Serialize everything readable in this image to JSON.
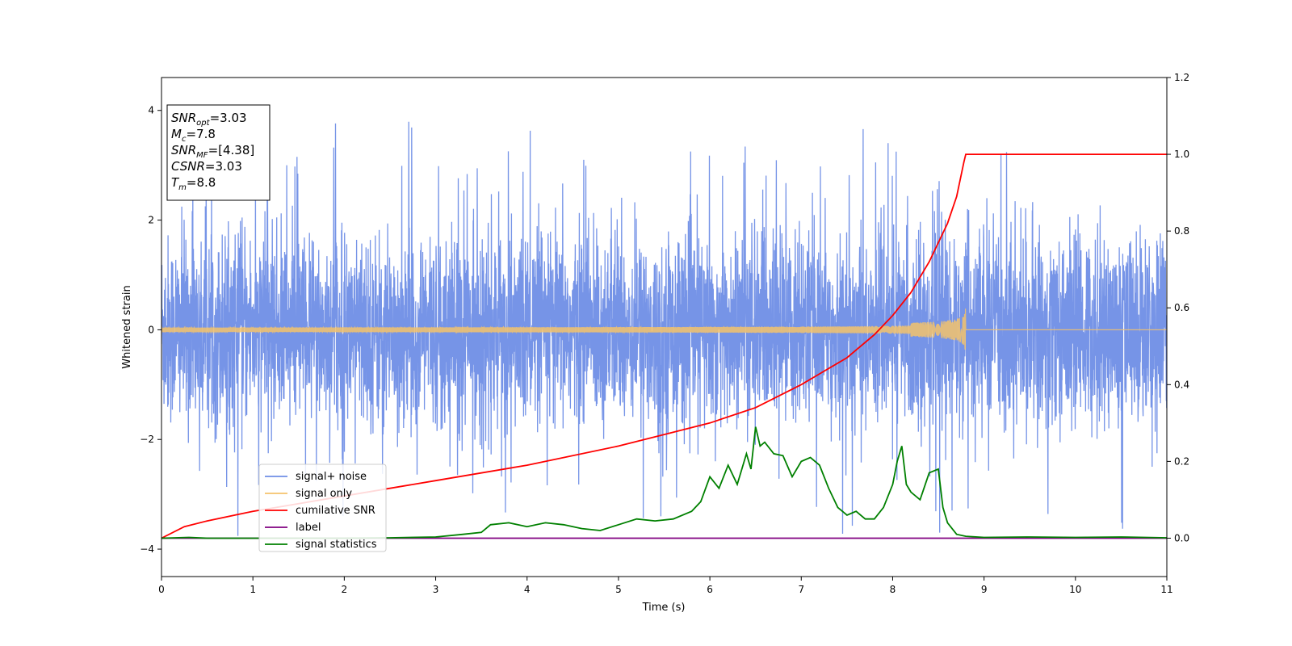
{
  "chart_data": {
    "type": "line",
    "xlabel": "Time (s)",
    "ylabel": "Whitened strain",
    "xlim": [
      0,
      11
    ],
    "ylim_left": [
      -4.5,
      4.6
    ],
    "ylim_right": [
      -0.1,
      1.2
    ],
    "x_ticks": [
      0,
      1,
      2,
      3,
      4,
      5,
      6,
      7,
      8,
      9,
      10,
      11
    ],
    "y_ticks_left": [
      -4,
      -2,
      0,
      2,
      4
    ],
    "y_ticks_right": [
      "0.0",
      "0.2",
      "0.4",
      "0.6",
      "0.8",
      "1.0",
      "1.2"
    ],
    "annotation_lines": [
      {
        "var": "SNR",
        "sub": "opt",
        "value": "=3.03"
      },
      {
        "var": "M",
        "sub": "c",
        "value": "=7.8"
      },
      {
        "var": "SNR",
        "sub": "MF",
        "value": "=[4.38]"
      },
      {
        "var": "CSNR",
        "sub": "",
        "value": "=3.03"
      },
      {
        "var": "T",
        "sub": "m",
        "value": "=8.8"
      }
    ],
    "legend_position": "lower-left",
    "series": [
      {
        "name": "signal+ noise",
        "axis": "left",
        "color": "#6f8ee6",
        "noise_std": 0.85,
        "spike_max": 4.2,
        "spike_min": -4.1
      },
      {
        "name": "signal only",
        "axis": "left",
        "color": "#f4c36b",
        "merger_time": 8.8,
        "peak_amplitude": 0.45
      },
      {
        "name": "cumilative SNR",
        "axis": "right",
        "color": "#ff0000",
        "points": [
          [
            0.0,
            0.0
          ],
          [
            0.25,
            0.03
          ],
          [
            0.5,
            0.045
          ],
          [
            1.0,
            0.07
          ],
          [
            2.0,
            0.11
          ],
          [
            3.0,
            0.15
          ],
          [
            4.0,
            0.19
          ],
          [
            5.0,
            0.24
          ],
          [
            5.5,
            0.27
          ],
          [
            6.0,
            0.3
          ],
          [
            6.5,
            0.34
          ],
          [
            7.0,
            0.4
          ],
          [
            7.5,
            0.47
          ],
          [
            7.8,
            0.53
          ],
          [
            8.0,
            0.58
          ],
          [
            8.2,
            0.64
          ],
          [
            8.4,
            0.72
          ],
          [
            8.6,
            0.82
          ],
          [
            8.7,
            0.89
          ],
          [
            8.78,
            0.98
          ],
          [
            8.8,
            1.0
          ],
          [
            11.0,
            1.0
          ]
        ]
      },
      {
        "name": "label",
        "axis": "right",
        "color": "#800080",
        "points": [
          [
            0,
            0.0
          ],
          [
            11,
            0.0
          ]
        ]
      },
      {
        "name": "signal statistics",
        "axis": "right",
        "color": "#008000",
        "points": [
          [
            0,
            0.0
          ],
          [
            0.3,
            0.002
          ],
          [
            0.5,
            0.0
          ],
          [
            1,
            0.0
          ],
          [
            2,
            0.0
          ],
          [
            2.5,
            0.001
          ],
          [
            3,
            0.003
          ],
          [
            3.3,
            0.01
          ],
          [
            3.5,
            0.015
          ],
          [
            3.6,
            0.035
          ],
          [
            3.8,
            0.04
          ],
          [
            4.0,
            0.03
          ],
          [
            4.2,
            0.04
          ],
          [
            4.4,
            0.035
          ],
          [
            4.6,
            0.025
          ],
          [
            4.8,
            0.02
          ],
          [
            5.0,
            0.035
          ],
          [
            5.2,
            0.05
          ],
          [
            5.4,
            0.045
          ],
          [
            5.6,
            0.05
          ],
          [
            5.8,
            0.07
          ],
          [
            5.9,
            0.095
          ],
          [
            6.0,
            0.16
          ],
          [
            6.1,
            0.13
          ],
          [
            6.2,
            0.19
          ],
          [
            6.3,
            0.14
          ],
          [
            6.4,
            0.22
          ],
          [
            6.45,
            0.18
          ],
          [
            6.5,
            0.29
          ],
          [
            6.55,
            0.24
          ],
          [
            6.6,
            0.25
          ],
          [
            6.7,
            0.22
          ],
          [
            6.8,
            0.215
          ],
          [
            6.9,
            0.16
          ],
          [
            7.0,
            0.2
          ],
          [
            7.1,
            0.21
          ],
          [
            7.2,
            0.19
          ],
          [
            7.3,
            0.13
          ],
          [
            7.4,
            0.08
          ],
          [
            7.5,
            0.06
          ],
          [
            7.6,
            0.07
          ],
          [
            7.7,
            0.05
          ],
          [
            7.8,
            0.05
          ],
          [
            7.9,
            0.08
          ],
          [
            8.0,
            0.14
          ],
          [
            8.05,
            0.2
          ],
          [
            8.1,
            0.24
          ],
          [
            8.15,
            0.14
          ],
          [
            8.2,
            0.12
          ],
          [
            8.3,
            0.1
          ],
          [
            8.4,
            0.17
          ],
          [
            8.5,
            0.18
          ],
          [
            8.55,
            0.08
          ],
          [
            8.6,
            0.04
          ],
          [
            8.7,
            0.01
          ],
          [
            8.8,
            0.005
          ],
          [
            9.0,
            0.002
          ],
          [
            9.5,
            0.003
          ],
          [
            10.0,
            0.002
          ],
          [
            10.5,
            0.003
          ],
          [
            11,
            0.001
          ]
        ]
      }
    ]
  }
}
